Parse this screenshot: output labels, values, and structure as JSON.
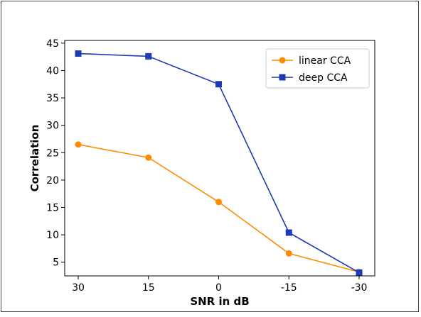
{
  "chart_data": {
    "type": "line",
    "categories": [
      "30",
      "15",
      "0",
      "-15",
      "-30"
    ],
    "xlabel": "SNR in dB",
    "ylabel": "Correlation",
    "ylim": [
      2.5,
      45.5
    ],
    "yticks": [
      5,
      10,
      15,
      20,
      25,
      30,
      35,
      40,
      45
    ],
    "grid": false,
    "legend_position": "top-right",
    "series": [
      {
        "name": "linear CCA",
        "color": "#ff8c00",
        "marker": "circle",
        "values": [
          26.5,
          24.1,
          16.0,
          6.6,
          3.2
        ]
      },
      {
        "name": "deep CCA",
        "color": "#1f3bb3",
        "marker": "square",
        "values": [
          43.1,
          42.6,
          37.5,
          10.4,
          3.1
        ]
      }
    ]
  }
}
